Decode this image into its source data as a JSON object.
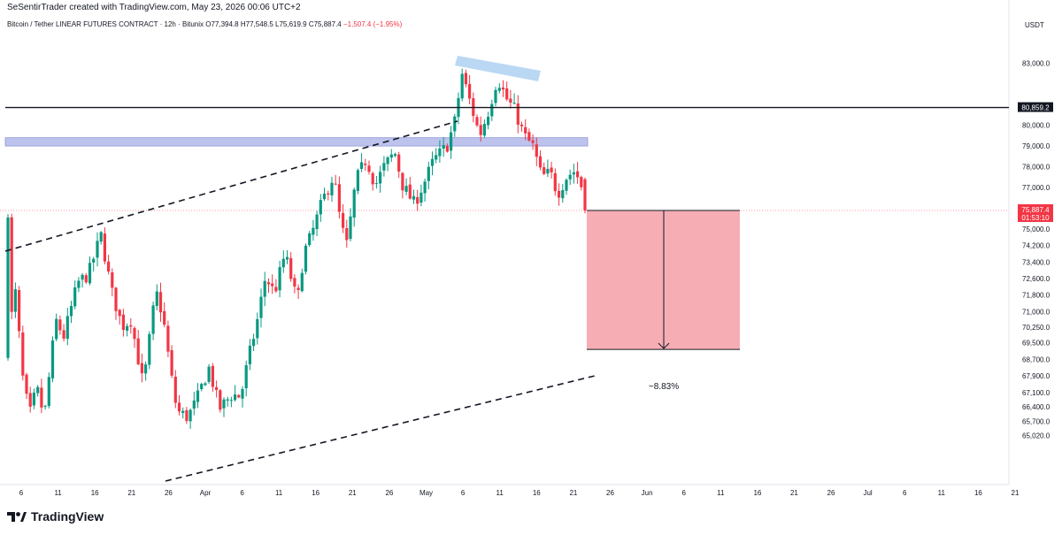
{
  "caption": "SeSentirTrader created with TradingView.com, May 23, 2026 00:06 UTC+2",
  "legend": {
    "symbol": "Bitcoin / Tether LINEAR FUTURES CONTRACT · 12h · Bitunix",
    "open": "O77,394.8",
    "high": "H77,548.5",
    "low": "L75,619.9",
    "close": "C75,887.4",
    "change": "−1,507.4 (−1.95%)"
  },
  "currency": "USDT",
  "price_axis": [
    {
      "label": "83,000.0",
      "value": 83000
    },
    {
      "label": "80,859.2",
      "value": 80859.2,
      "tag": "level"
    },
    {
      "label": "80,000.0",
      "value": 80000
    },
    {
      "label": "79,000.0",
      "value": 79000
    },
    {
      "label": "78,000.0",
      "value": 78000
    },
    {
      "label": "77,000.0",
      "value": 77000
    },
    {
      "label": "75,887.4",
      "value": 75887.4,
      "tag": "price",
      "countdown": "01:53:10"
    },
    {
      "label": "75,000.0",
      "value": 75000
    },
    {
      "label": "74,200.0",
      "value": 74200
    },
    {
      "label": "73,400.0",
      "value": 73400
    },
    {
      "label": "72,600.0",
      "value": 72600
    },
    {
      "label": "71,800.0",
      "value": 71800
    },
    {
      "label": "71,000.0",
      "value": 71000
    },
    {
      "label": "70,250.0",
      "value": 70250
    },
    {
      "label": "69,500.0",
      "value": 69500
    },
    {
      "label": "68,700.0",
      "value": 68700
    },
    {
      "label": "67,900.0",
      "value": 67900
    },
    {
      "label": "67,100.0",
      "value": 67100
    },
    {
      "label": "66,400.0",
      "value": 66400
    },
    {
      "label": "65,700.0",
      "value": 65700
    },
    {
      "label": "65,020.0",
      "value": 65020
    }
  ],
  "time_axis": [
    "6",
    "11",
    "16",
    "21",
    "26",
    "Apr",
    "6",
    "11",
    "16",
    "21",
    "26",
    "May",
    "6",
    "11",
    "16",
    "21",
    "26",
    "Jun",
    "6",
    "11",
    "16",
    "21",
    "26",
    "Jul",
    "6",
    "11",
    "16",
    "21"
  ],
  "drawings": {
    "horizontal_level": 80859.2,
    "resistance_zone": [
      79000,
      79400
    ],
    "projection_label": "−8.83%",
    "projection_top": 75887.4,
    "projection_bottom": 69180
  },
  "colors": {
    "up": "#089981",
    "down": "#f23645",
    "zone": "#b2b9ea",
    "projection": "#f7a9b0",
    "wedge": "#b3d4f2"
  },
  "footer": {
    "brand": "TradingView",
    "logo": "tradingview-logo-icon"
  }
}
